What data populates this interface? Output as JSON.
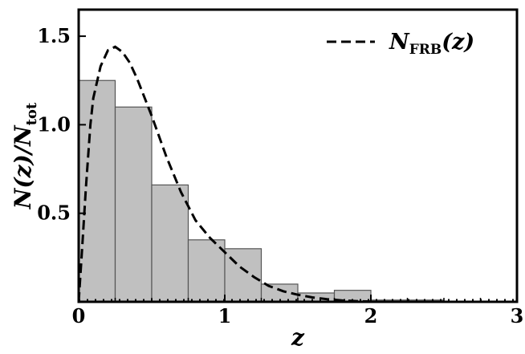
{
  "chart_data": {
    "type": "bar",
    "xlim": [
      0,
      3
    ],
    "ylim": [
      0,
      1.65
    ],
    "xticks": [
      0,
      1,
      2,
      3
    ],
    "xtick_labels": [
      "0",
      "1",
      "2",
      "3"
    ],
    "yticks": [
      0.5,
      1.0,
      1.5
    ],
    "ytick_labels": [
      "0.5",
      "1.0",
      "1.5"
    ],
    "xlabel": "z",
    "ylabel": {
      "main": "N(z)/N",
      "subscript": "tot"
    },
    "grid": false,
    "legend_position": "top-right",
    "histogram": {
      "bin_edges": [
        0,
        0.25,
        0.5,
        0.75,
        1.0,
        1.25,
        1.5,
        1.75,
        2.0,
        2.25,
        2.5,
        2.75,
        3.0
      ],
      "values": [
        1.25,
        1.1,
        0.66,
        0.35,
        0.3,
        0.1,
        0.05,
        0.065,
        0.01,
        0.01,
        0.0,
        0.0
      ],
      "color": "#c0c0c0",
      "edge_color": "#555555"
    },
    "series": [
      {
        "name": {
          "main": "N",
          "subscript": "FRB",
          "suffix": "(z)"
        },
        "style": "dashed",
        "color": "#000000",
        "x": [
          0,
          0.02,
          0.05,
          0.08,
          0.1,
          0.15,
          0.2,
          0.25,
          0.3,
          0.35,
          0.4,
          0.5,
          0.6,
          0.7,
          0.8,
          0.9,
          1.0,
          1.1,
          1.2,
          1.3,
          1.4,
          1.5,
          1.6,
          1.7,
          1.8,
          1.9,
          2.0
        ],
        "y": [
          0,
          0.25,
          0.65,
          1.0,
          1.15,
          1.33,
          1.42,
          1.44,
          1.41,
          1.35,
          1.26,
          1.05,
          0.82,
          0.62,
          0.46,
          0.36,
          0.28,
          0.2,
          0.14,
          0.09,
          0.06,
          0.04,
          0.025,
          0.015,
          0.008,
          0.004,
          0.002
        ]
      }
    ]
  }
}
